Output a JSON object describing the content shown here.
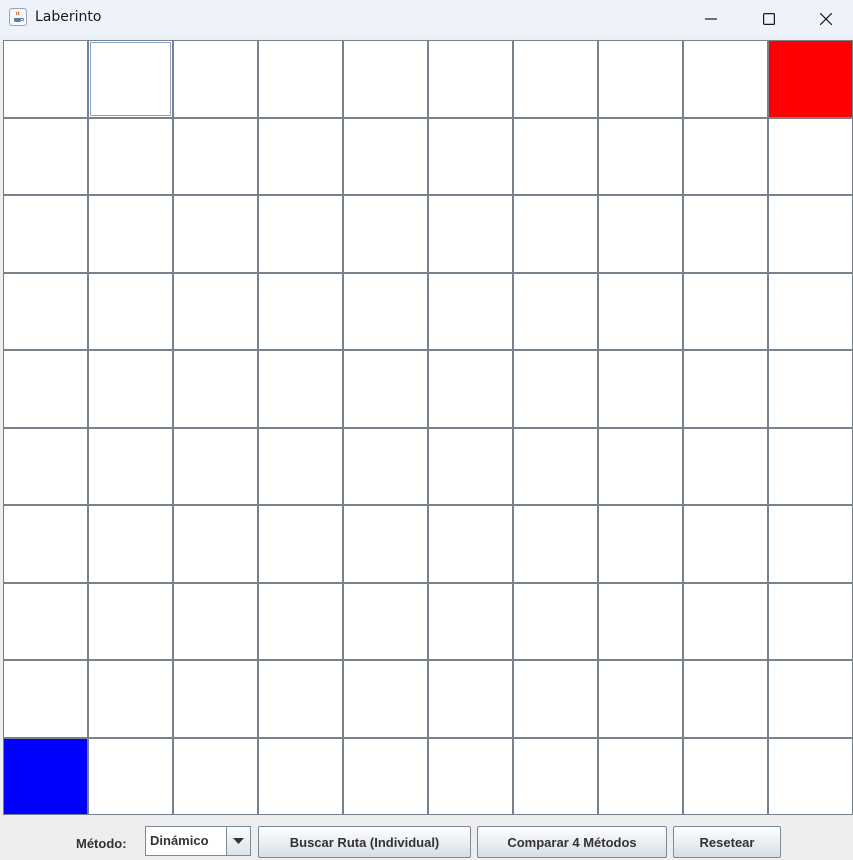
{
  "window": {
    "title": "Laberinto",
    "controls": [
      "minimize-icon",
      "maximize-icon",
      "close-icon"
    ]
  },
  "maze": {
    "rows": 10,
    "cols": 10,
    "cells": [
      [
        "empty",
        "empty",
        "empty",
        "empty",
        "empty",
        "empty",
        "empty",
        "empty",
        "empty",
        "goal"
      ],
      [
        "empty",
        "empty",
        "empty",
        "empty",
        "empty",
        "empty",
        "empty",
        "empty",
        "empty",
        "empty"
      ],
      [
        "empty",
        "empty",
        "empty",
        "empty",
        "empty",
        "empty",
        "empty",
        "empty",
        "empty",
        "empty"
      ],
      [
        "empty",
        "empty",
        "empty",
        "empty",
        "empty",
        "empty",
        "empty",
        "empty",
        "empty",
        "empty"
      ],
      [
        "empty",
        "empty",
        "empty",
        "empty",
        "empty",
        "empty",
        "empty",
        "empty",
        "empty",
        "empty"
      ],
      [
        "empty",
        "empty",
        "empty",
        "empty",
        "empty",
        "empty",
        "empty",
        "empty",
        "empty",
        "empty"
      ],
      [
        "empty",
        "empty",
        "empty",
        "empty",
        "empty",
        "empty",
        "empty",
        "empty",
        "empty",
        "empty"
      ],
      [
        "empty",
        "empty",
        "empty",
        "empty",
        "empty",
        "empty",
        "empty",
        "empty",
        "empty",
        "empty"
      ],
      [
        "empty",
        "empty",
        "empty",
        "empty",
        "empty",
        "empty",
        "empty",
        "empty",
        "empty",
        "empty"
      ],
      [
        "start",
        "empty",
        "empty",
        "empty",
        "empty",
        "empty",
        "empty",
        "empty",
        "empty",
        "empty"
      ]
    ],
    "focused_cell": [
      0,
      1
    ],
    "colors": {
      "empty": "#ffffff",
      "goal": "#ff0000",
      "start": "#0000ff",
      "border": "#75828d"
    }
  },
  "controls": {
    "method_label": "Método:",
    "method_selected": "Dinámico",
    "search_button": "Buscar Ruta (Individual)",
    "compare_button": "Comparar 4 Métodos",
    "reset_button": "Resetear"
  }
}
